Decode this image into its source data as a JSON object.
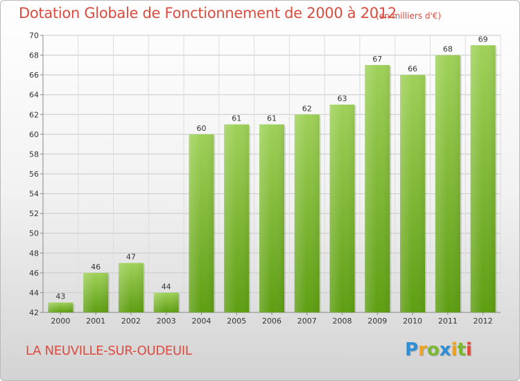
{
  "title": "Dotation Globale de Fonctionnement de 2000 à 2012",
  "subtitle": "(en milliers d'€)",
  "commune": "LA NEUVILLE-SUR-OUDEUIL",
  "logo": {
    "text": "Proxiti",
    "letters": [
      {
        "char": "P",
        "color": "#2f8fd6"
      },
      {
        "char": "r",
        "color": "#f4a11a"
      },
      {
        "char": "o",
        "color": "#79b82f"
      },
      {
        "char": "x",
        "color": "#2f8fd6"
      },
      {
        "char": "i",
        "color": "#f4a11a"
      },
      {
        "char": "t",
        "color": "#79b82f"
      },
      {
        "char": "i",
        "color": "#e04b3a"
      }
    ]
  },
  "colors": {
    "accent": "#dc4b3e",
    "bar_top": "#9fd159",
    "bar_bottom": "#5e9e12"
  },
  "chart_data": {
    "type": "bar",
    "categories": [
      "2000",
      "2001",
      "2002",
      "2003",
      "2004",
      "2005",
      "2006",
      "2007",
      "2008",
      "2009",
      "2010",
      "2011",
      "2012"
    ],
    "values": [
      43,
      46,
      47,
      44,
      60,
      61,
      61,
      62,
      63,
      67,
      66,
      68,
      69
    ],
    "ylim": [
      42,
      70
    ],
    "yticks": [
      42,
      44,
      46,
      48,
      50,
      52,
      54,
      56,
      58,
      60,
      62,
      64,
      66,
      68,
      70
    ],
    "grid": true
  }
}
